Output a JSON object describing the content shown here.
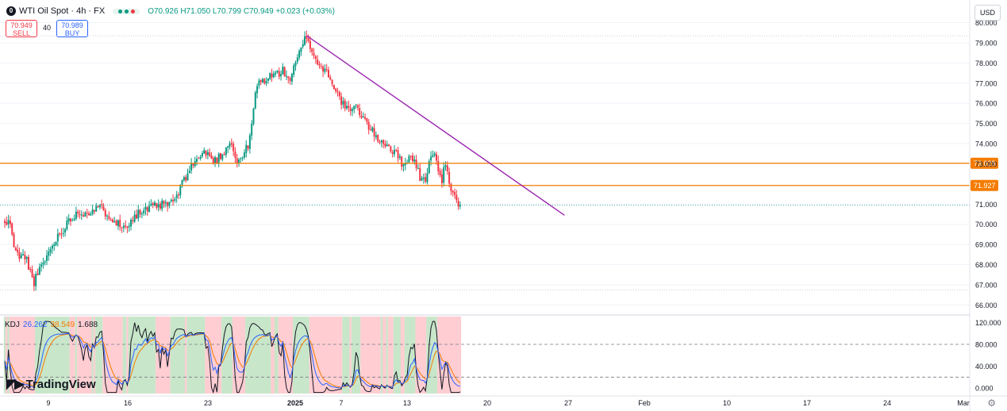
{
  "header": {
    "symbol_icon": "0",
    "title": "WTI Oil Spot · 4h · FX",
    "ohlc": "O70.926 H71.050 L70.799 C70.949 +0.023 (+0.03%)",
    "status_dot_colors": [
      "#089981",
      "#089981",
      "#f23645"
    ]
  },
  "quotes": {
    "sell_price": "70.949",
    "sell_label": "SELL",
    "spread": "40",
    "buy_price": "70.989",
    "buy_label": "BUY"
  },
  "currency": "USD",
  "colors": {
    "up": "#089981",
    "down": "#f23645",
    "hline": "#f57c00",
    "trendline": "#9c27b0",
    "k": "#2962ff",
    "d": "#f57c00",
    "j": "#131722",
    "bg_up": "#c8e6c9",
    "bg_down": "#ffcdd2"
  },
  "chart_data": {
    "type": "candlestick",
    "title": "WTI Oil Spot · 4h · FX",
    "y_axis": {
      "ticks": [
        "80.000",
        "79.000",
        "78.000",
        "77.000",
        "76.000",
        "75.000",
        "74.000",
        "73.000",
        "71.000",
        "70.000",
        "69.000",
        "68.000",
        "67.000",
        "66.000"
      ],
      "ylim": [
        65.7,
        80.1
      ]
    },
    "x_axis": {
      "ticks": [
        "9",
        "16",
        "23",
        "2025",
        "7",
        "13",
        "20",
        "27",
        "Feb",
        "10",
        "17",
        "24",
        "Mar"
      ]
    },
    "candle_count": 250,
    "close_anchors": [
      [
        0,
        70.0
      ],
      [
        5,
        70.1
      ],
      [
        8,
        68.6
      ],
      [
        18,
        68.3
      ],
      [
        24,
        67.1
      ],
      [
        34,
        68.3
      ],
      [
        44,
        69.4
      ],
      [
        58,
        70.5
      ],
      [
        74,
        70.7
      ],
      [
        80,
        70.8
      ],
      [
        90,
        70.3
      ],
      [
        98,
        69.8
      ],
      [
        110,
        70.5
      ],
      [
        114,
        70.6
      ],
      [
        126,
        70.9
      ],
      [
        136,
        71.0
      ],
      [
        142,
        71.2
      ],
      [
        152,
        72.5
      ],
      [
        158,
        73.1
      ],
      [
        168,
        73.6
      ],
      [
        174,
        73.1
      ],
      [
        182,
        73.5
      ],
      [
        188,
        74.2
      ],
      [
        194,
        73.0
      ],
      [
        204,
        74.0
      ],
      [
        210,
        76.9
      ],
      [
        220,
        77.3
      ],
      [
        232,
        77.6
      ],
      [
        238,
        77.2
      ],
      [
        248,
        78.8
      ],
      [
        252,
        79.4
      ],
      [
        256,
        78.6
      ],
      [
        262,
        77.9
      ],
      [
        270,
        77.5
      ],
      [
        278,
        76.4
      ],
      [
        286,
        75.6
      ],
      [
        294,
        75.8
      ],
      [
        302,
        75.0
      ],
      [
        310,
        74.3
      ],
      [
        318,
        74.0
      ],
      [
        326,
        73.5
      ],
      [
        332,
        73.0
      ],
      [
        340,
        73.4
      ],
      [
        348,
        72.1
      ],
      [
        352,
        72.3
      ],
      [
        356,
        73.7
      ],
      [
        360,
        73.2
      ],
      [
        364,
        72.0
      ],
      [
        368,
        73.1
      ],
      [
        372,
        71.8
      ],
      [
        376,
        71.2
      ],
      [
        380,
        70.95
      ]
    ],
    "series": [
      {
        "name": "",
        "type": "horizontal_line",
        "value": 73.028
      },
      {
        "name": "",
        "type": "horizontal_line",
        "value": 71.927
      },
      {
        "name": "",
        "type": "trendline",
        "points": [
          [
            252,
            79.35
          ],
          [
            467,
            70.45
          ]
        ]
      },
      {
        "name": "",
        "type": "price_line",
        "value": 70.949
      }
    ],
    "horizontal_line_labels": [
      "73.028",
      "71.927"
    ],
    "indicator": {
      "name": "KDJ",
      "k": "26.262",
      "d": "38.549",
      "j": "1.688",
      "y_ticks": [
        "120.000",
        "80.000",
        "40.000",
        "0.000"
      ],
      "ylim": [
        -10,
        125
      ],
      "levels": [
        80,
        20
      ]
    }
  },
  "branding": "TradingView",
  "icons": {
    "settings": "gear-icon"
  }
}
